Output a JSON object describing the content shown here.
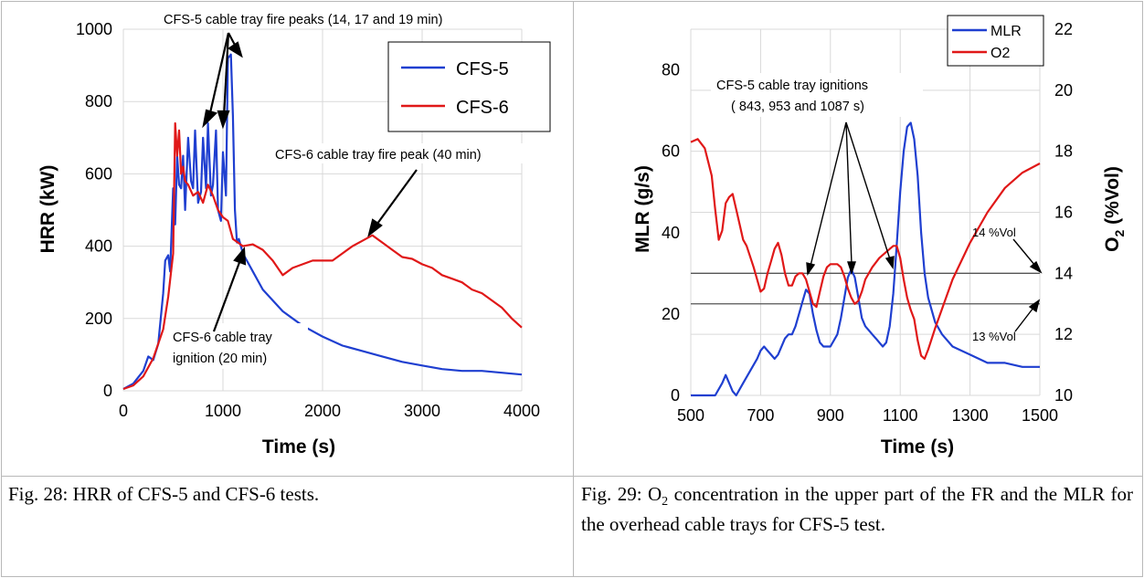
{
  "chart_data": [
    {
      "type": "line",
      "xlabel": "Time (s)",
      "ylabel": "HRR (kW)",
      "xlim": [
        0,
        4000
      ],
      "ylim": [
        0,
        1000
      ],
      "xticks": [
        "0",
        "1000",
        "2000",
        "3000",
        "4000"
      ],
      "yticks": [
        "0",
        "200",
        "400",
        "600",
        "800",
        "1000"
      ],
      "grid": true,
      "legend": "top-right",
      "series": [
        {
          "name": "CFS-5",
          "color": "#1f3fd0",
          "x": [
            0,
            100,
            200,
            250,
            300,
            350,
            400,
            420,
            450,
            470,
            500,
            520,
            540,
            560,
            580,
            600,
            620,
            650,
            680,
            700,
            720,
            750,
            780,
            800,
            830,
            850,
            880,
            900,
            930,
            950,
            980,
            1000,
            1030,
            1050,
            1080,
            1100,
            1120,
            1140,
            1160,
            1180,
            1200,
            1300,
            1400,
            1500,
            1600,
            1700,
            1800,
            2000,
            2200,
            2400,
            2600,
            2800,
            3000,
            3200,
            3400,
            3600,
            3800,
            4000
          ],
          "y": [
            5,
            20,
            55,
            95,
            85,
            130,
            270,
            360,
            375,
            330,
            560,
            460,
            650,
            570,
            560,
            650,
            500,
            700,
            580,
            560,
            720,
            520,
            550,
            700,
            560,
            740,
            540,
            570,
            720,
            500,
            470,
            660,
            540,
            920,
            930,
            760,
            500,
            410,
            420,
            400,
            380,
            330,
            280,
            250,
            220,
            200,
            180,
            150,
            125,
            110,
            95,
            80,
            70,
            60,
            55,
            55,
            50,
            45
          ]
        },
        {
          "name": "CFS-6",
          "color": "#e01818",
          "x": [
            0,
            100,
            200,
            300,
            400,
            450,
            500,
            520,
            540,
            560,
            580,
            600,
            620,
            650,
            700,
            750,
            800,
            850,
            900,
            950,
            1000,
            1050,
            1100,
            1150,
            1200,
            1300,
            1400,
            1500,
            1600,
            1700,
            1800,
            1900,
            2000,
            2100,
            2200,
            2300,
            2400,
            2500,
            2600,
            2700,
            2800,
            2900,
            3000,
            3100,
            3200,
            3300,
            3400,
            3500,
            3600,
            3700,
            3800,
            3900,
            4000
          ],
          "y": [
            5,
            15,
            40,
            90,
            170,
            260,
            380,
            740,
            650,
            720,
            600,
            620,
            580,
            570,
            540,
            550,
            520,
            570,
            540,
            500,
            480,
            470,
            420,
            410,
            400,
            405,
            390,
            360,
            320,
            340,
            350,
            360,
            360,
            360,
            380,
            400,
            415,
            430,
            410,
            390,
            370,
            365,
            350,
            340,
            320,
            310,
            300,
            280,
            270,
            250,
            230,
            200,
            175
          ]
        }
      ],
      "annotations": [
        "CFS-5 cable tray fire peaks (14, 17 and 19 min)",
        "CFS-6 cable tray fire peak (40 min)",
        "CFS-6 cable tray ignition (20 min)"
      ]
    },
    {
      "type": "line",
      "xlabel": "Time (s)",
      "ylabel": "MLR (g/s)",
      "y2label": "O2 (%Vol)",
      "xlim": [
        500,
        1500
      ],
      "ylim": [
        0,
        90
      ],
      "y2lim": [
        10,
        22
      ],
      "xticks": [
        "500",
        "700",
        "900",
        "1100",
        "1300",
        "1500"
      ],
      "yticks": [
        "0",
        "20",
        "40",
        "60",
        "80"
      ],
      "y2ticks": [
        "10",
        "12",
        "14",
        "16",
        "18",
        "20",
        "22"
      ],
      "grid": true,
      "legend": "top-right",
      "series": [
        {
          "name": "MLR",
          "axis": "left",
          "color": "#1f3fd0",
          "x": [
            500,
            540,
            570,
            590,
            600,
            610,
            620,
            630,
            650,
            670,
            690,
            700,
            710,
            720,
            740,
            750,
            770,
            780,
            790,
            800,
            810,
            820,
            830,
            840,
            850,
            860,
            870,
            880,
            900,
            920,
            930,
            940,
            950,
            960,
            970,
            980,
            990,
            1000,
            1010,
            1020,
            1030,
            1040,
            1050,
            1060,
            1070,
            1080,
            1090,
            1100,
            1110,
            1120,
            1130,
            1140,
            1150,
            1160,
            1170,
            1180,
            1200,
            1220,
            1250,
            1300,
            1350,
            1400,
            1450,
            1500
          ],
          "y": [
            0,
            0,
            0,
            3,
            5,
            3,
            1,
            0,
            3,
            6,
            9,
            11,
            12,
            11,
            9,
            10,
            14,
            15,
            15,
            17,
            20,
            23,
            26,
            25,
            20,
            16,
            13,
            12,
            12,
            15,
            19,
            24,
            29,
            31,
            29,
            24,
            19,
            17,
            16,
            15,
            14,
            13,
            12,
            13,
            17,
            25,
            37,
            50,
            60,
            66,
            67,
            63,
            54,
            40,
            30,
            24,
            18,
            15,
            12,
            10,
            8,
            8,
            7,
            7
          ]
        },
        {
          "name": "O2",
          "axis": "right",
          "color": "#e01818",
          "x": [
            500,
            520,
            540,
            560,
            570,
            580,
            590,
            600,
            610,
            620,
            630,
            640,
            650,
            660,
            680,
            700,
            710,
            720,
            730,
            740,
            750,
            760,
            770,
            780,
            790,
            800,
            810,
            820,
            830,
            840,
            850,
            860,
            870,
            880,
            890,
            900,
            920,
            930,
            940,
            950,
            960,
            970,
            980,
            990,
            1000,
            1020,
            1040,
            1060,
            1080,
            1090,
            1100,
            1110,
            1120,
            1130,
            1140,
            1150,
            1160,
            1170,
            1180,
            1200,
            1250,
            1300,
            1350,
            1400,
            1450,
            1500
          ],
          "y": [
            18.3,
            18.4,
            18.1,
            17.2,
            16.1,
            15.1,
            15.4,
            16.3,
            16.5,
            16.6,
            16.1,
            15.6,
            15.1,
            14.9,
            14.2,
            13.4,
            13.5,
            14.0,
            14.4,
            14.8,
            15.0,
            14.6,
            14.0,
            13.6,
            13.6,
            13.9,
            14.0,
            14.0,
            13.8,
            13.4,
            13.0,
            12.9,
            13.4,
            13.9,
            14.2,
            14.3,
            14.3,
            14.2,
            13.9,
            13.5,
            13.2,
            13.0,
            13.1,
            13.4,
            13.8,
            14.2,
            14.5,
            14.7,
            14.9,
            14.9,
            14.5,
            13.8,
            13.2,
            12.8,
            12.5,
            11.8,
            11.3,
            11.2,
            11.5,
            12.2,
            13.8,
            15.0,
            16.0,
            16.8,
            17.3,
            17.6
          ]
        }
      ],
      "reference_lines": [
        {
          "label": "14 %Vol",
          "value": 14
        },
        {
          "label": "13 %Vol",
          "value": 13
        }
      ],
      "annotations": [
        "CFS-5 cable tray ignitions",
        "( 843, 953 and 1087 s)"
      ]
    }
  ],
  "captions": {
    "fig28": "Fig. 28: HRR of CFS-5 and CFS-6 tests.",
    "fig29_line1": "Fig. 29: O",
    "fig29_sub": "2",
    "fig29_rest": " concentration in the upper part of the FR and the MLR for the overhead cable trays for CFS-5 test."
  },
  "ylabel2_parts": {
    "main": "O",
    "sub": "2",
    "tail": " (%Vol)"
  },
  "colors": {
    "blue": "#1f3fd0",
    "red": "#e01818",
    "grid": "#d9d9d9",
    "border": "#b8b8b8"
  }
}
